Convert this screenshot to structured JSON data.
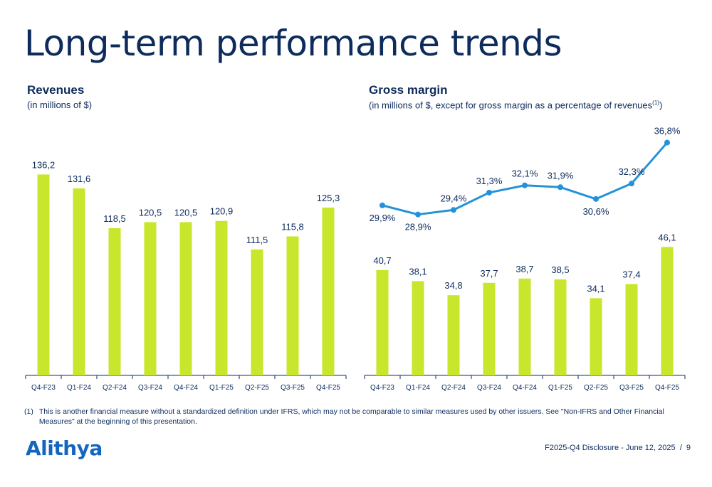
{
  "page": {
    "title": "Long-term performance trends",
    "footnote_marker": "(1)",
    "footnote_text": "This is another financial measure without a standardized definition under IFRS, which may not be comparable to similar measures used by other issuers. See \"Non-IFRS and Other Financial Measures\" at the beginning of this presentation.",
    "logo_text": "Alithya",
    "footer_text": "F2025-Q4 Disclosure - June 12, 2025",
    "page_number": "9"
  },
  "colors": {
    "bar": "#c8e62c",
    "line": "#2492d9",
    "text": "#0d2c5c",
    "axis": "#0d2c5c",
    "logo": "#1565c0"
  },
  "chart_data": [
    {
      "type": "bar",
      "title": "Revenues",
      "subtitle": "(in millions of $)",
      "categories": [
        "Q4-F23",
        "Q1-F24",
        "Q2-F24",
        "Q3-F24",
        "Q4-F24",
        "Q1-F25",
        "Q2-F25",
        "Q3-F25",
        "Q4-F25"
      ],
      "values": [
        136.2,
        131.6,
        118.5,
        120.5,
        120.5,
        120.9,
        111.5,
        115.8,
        125.3
      ],
      "value_labels": [
        "136,2",
        "131,6",
        "118,5",
        "120,5",
        "120,5",
        "120,9",
        "111,5",
        "115,8",
        "125,3"
      ],
      "ylim": [
        70,
        137
      ],
      "grid": false,
      "legend": "none"
    },
    {
      "type": "bar+line",
      "title": "Gross margin",
      "subtitle": "(in millions of $, except for gross margin as a percentage of revenues",
      "subtitle_sup": "(1)",
      "subtitle_end": ")",
      "categories": [
        "Q4-F23",
        "Q1-F24",
        "Q2-F24",
        "Q3-F24",
        "Q4-F24",
        "Q1-F25",
        "Q2-F25",
        "Q3-F25",
        "Q4-F25"
      ],
      "values": [
        40.7,
        38.1,
        34.8,
        37.7,
        38.7,
        38.5,
        34.1,
        37.4,
        46.1
      ],
      "value_labels": [
        "40,7",
        "38,1",
        "34,8",
        "37,7",
        "38,7",
        "38,5",
        "34,1",
        "37,4",
        "46,1"
      ],
      "bar_ylim": [
        16,
        50
      ],
      "line_values": [
        29.9,
        28.9,
        29.4,
        31.3,
        32.1,
        31.9,
        30.6,
        32.3,
        36.8
      ],
      "line_labels": [
        "29,9%",
        "28,9%",
        "29,4%",
        "31,3%",
        "32,1%",
        "31,9%",
        "30,6%",
        "32,3%",
        "36,8%"
      ],
      "line_label_positions": [
        "below",
        "below",
        "above",
        "above",
        "above",
        "above",
        "below",
        "above",
        "above"
      ],
      "line_ylim": [
        22,
        37
      ],
      "grid": false,
      "legend": "none"
    }
  ]
}
